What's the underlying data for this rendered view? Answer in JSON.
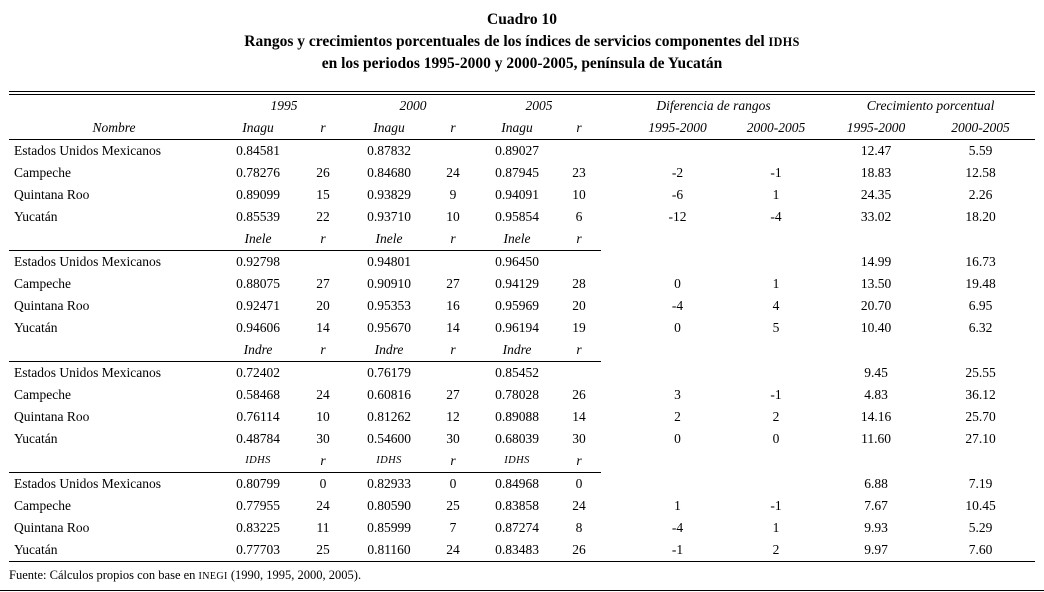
{
  "title": {
    "cuadro": "Cuadro 10",
    "line2_pre": "Rangos y crecimientos porcentuales de los índices de servicios componentes del ",
    "line2_sc": "IDHS",
    "line3": "en los periodos 1995-2000 y 2000-2005, península de Yucatán"
  },
  "header": {
    "nombre": "Nombre",
    "years": [
      "1995",
      "2000",
      "2005"
    ],
    "indicator": "Inagu",
    "r": "r",
    "dif_label": "Diferencia de rangos",
    "cre_label": "Crecimiento porcentual",
    "periods": [
      "1995-2000",
      "2000-2005"
    ]
  },
  "sections": [
    {
      "indicator": "Inagu",
      "smallcaps": false,
      "rows": [
        {
          "name": "Estados Unidos Mexicanos",
          "cells": [
            "0.84581",
            "",
            "0.87832",
            "",
            "0.89027",
            "",
            "",
            "",
            "12.47",
            "5.59"
          ]
        },
        {
          "name": "Campeche",
          "cells": [
            "0.78276",
            "26",
            "0.84680",
            "24",
            "0.87945",
            "23",
            "-2",
            "-1",
            "18.83",
            "12.58"
          ]
        },
        {
          "name": "Quintana Roo",
          "cells": [
            "0.89099",
            "15",
            "0.93829",
            "9",
            "0.94091",
            "10",
            "-6",
            "1",
            "24.35",
            "2.26"
          ]
        },
        {
          "name": "Yucatán",
          "cells": [
            "0.85539",
            "22",
            "0.93710",
            "10",
            "0.95854",
            "6",
            "-12",
            "-4",
            "33.02",
            "18.20"
          ]
        }
      ]
    },
    {
      "indicator": "Inele",
      "smallcaps": false,
      "rows": [
        {
          "name": "Estados Unidos Mexicanos",
          "cells": [
            "0.92798",
            "",
            "0.94801",
            "",
            "0.96450",
            "",
            "",
            "",
            "14.99",
            "16.73"
          ]
        },
        {
          "name": "Campeche",
          "cells": [
            "0.88075",
            "27",
            "0.90910",
            "27",
            "0.94129",
            "28",
            "0",
            "1",
            "13.50",
            "19.48"
          ]
        },
        {
          "name": "Quintana Roo",
          "cells": [
            "0.92471",
            "20",
            "0.95353",
            "16",
            "0.95969",
            "20",
            "-4",
            "4",
            "20.70",
            "6.95"
          ]
        },
        {
          "name": "Yucatán",
          "cells": [
            "0.94606",
            "14",
            "0.95670",
            "14",
            "0.96194",
            "19",
            "0",
            "5",
            "10.40",
            "6.32"
          ]
        }
      ]
    },
    {
      "indicator": "Indre",
      "smallcaps": false,
      "rows": [
        {
          "name": "Estados Unidos Mexicanos",
          "cells": [
            "0.72402",
            "",
            "0.76179",
            "",
            "0.85452",
            "",
            "",
            "",
            "9.45",
            "25.55"
          ]
        },
        {
          "name": "Campeche",
          "cells": [
            "0.58468",
            "24",
            "0.60816",
            "27",
            "0.78028",
            "26",
            "3",
            "-1",
            "4.83",
            "36.12"
          ]
        },
        {
          "name": "Quintana Roo",
          "cells": [
            "0.76114",
            "10",
            "0.81262",
            "12",
            "0.89088",
            "14",
            "2",
            "2",
            "14.16",
            "25.70"
          ]
        },
        {
          "name": "Yucatán",
          "cells": [
            "0.48784",
            "30",
            "0.54600",
            "30",
            "0.68039",
            "30",
            "0",
            "0",
            "11.60",
            "27.10"
          ]
        }
      ]
    },
    {
      "indicator": "IDHS",
      "smallcaps": true,
      "rows": [
        {
          "name": "Estados Unidos Mexicanos",
          "cells": [
            "0.80799",
            "0",
            "0.82933",
            "0",
            "0.84968",
            "0",
            "",
            "",
            "6.88",
            "7.19"
          ]
        },
        {
          "name": "Campeche",
          "cells": [
            "0.77955",
            "24",
            "0.80590",
            "25",
            "0.83858",
            "24",
            "1",
            "-1",
            "7.67",
            "10.45"
          ]
        },
        {
          "name": "Quintana Roo",
          "cells": [
            "0.83225",
            "11",
            "0.85999",
            "7",
            "0.87274",
            "8",
            "-4",
            "1",
            "9.93",
            "5.29"
          ]
        },
        {
          "name": "Yucatán",
          "cells": [
            "0.77703",
            "25",
            "0.81160",
            "24",
            "0.83483",
            "26",
            "-1",
            "2",
            "9.97",
            "7.60"
          ]
        }
      ]
    }
  ],
  "footer": {
    "pre": "Fuente: Cálculos propios con base en ",
    "sc": "INEGI",
    "post": " (1990, 1995, 2000, 2005)."
  }
}
